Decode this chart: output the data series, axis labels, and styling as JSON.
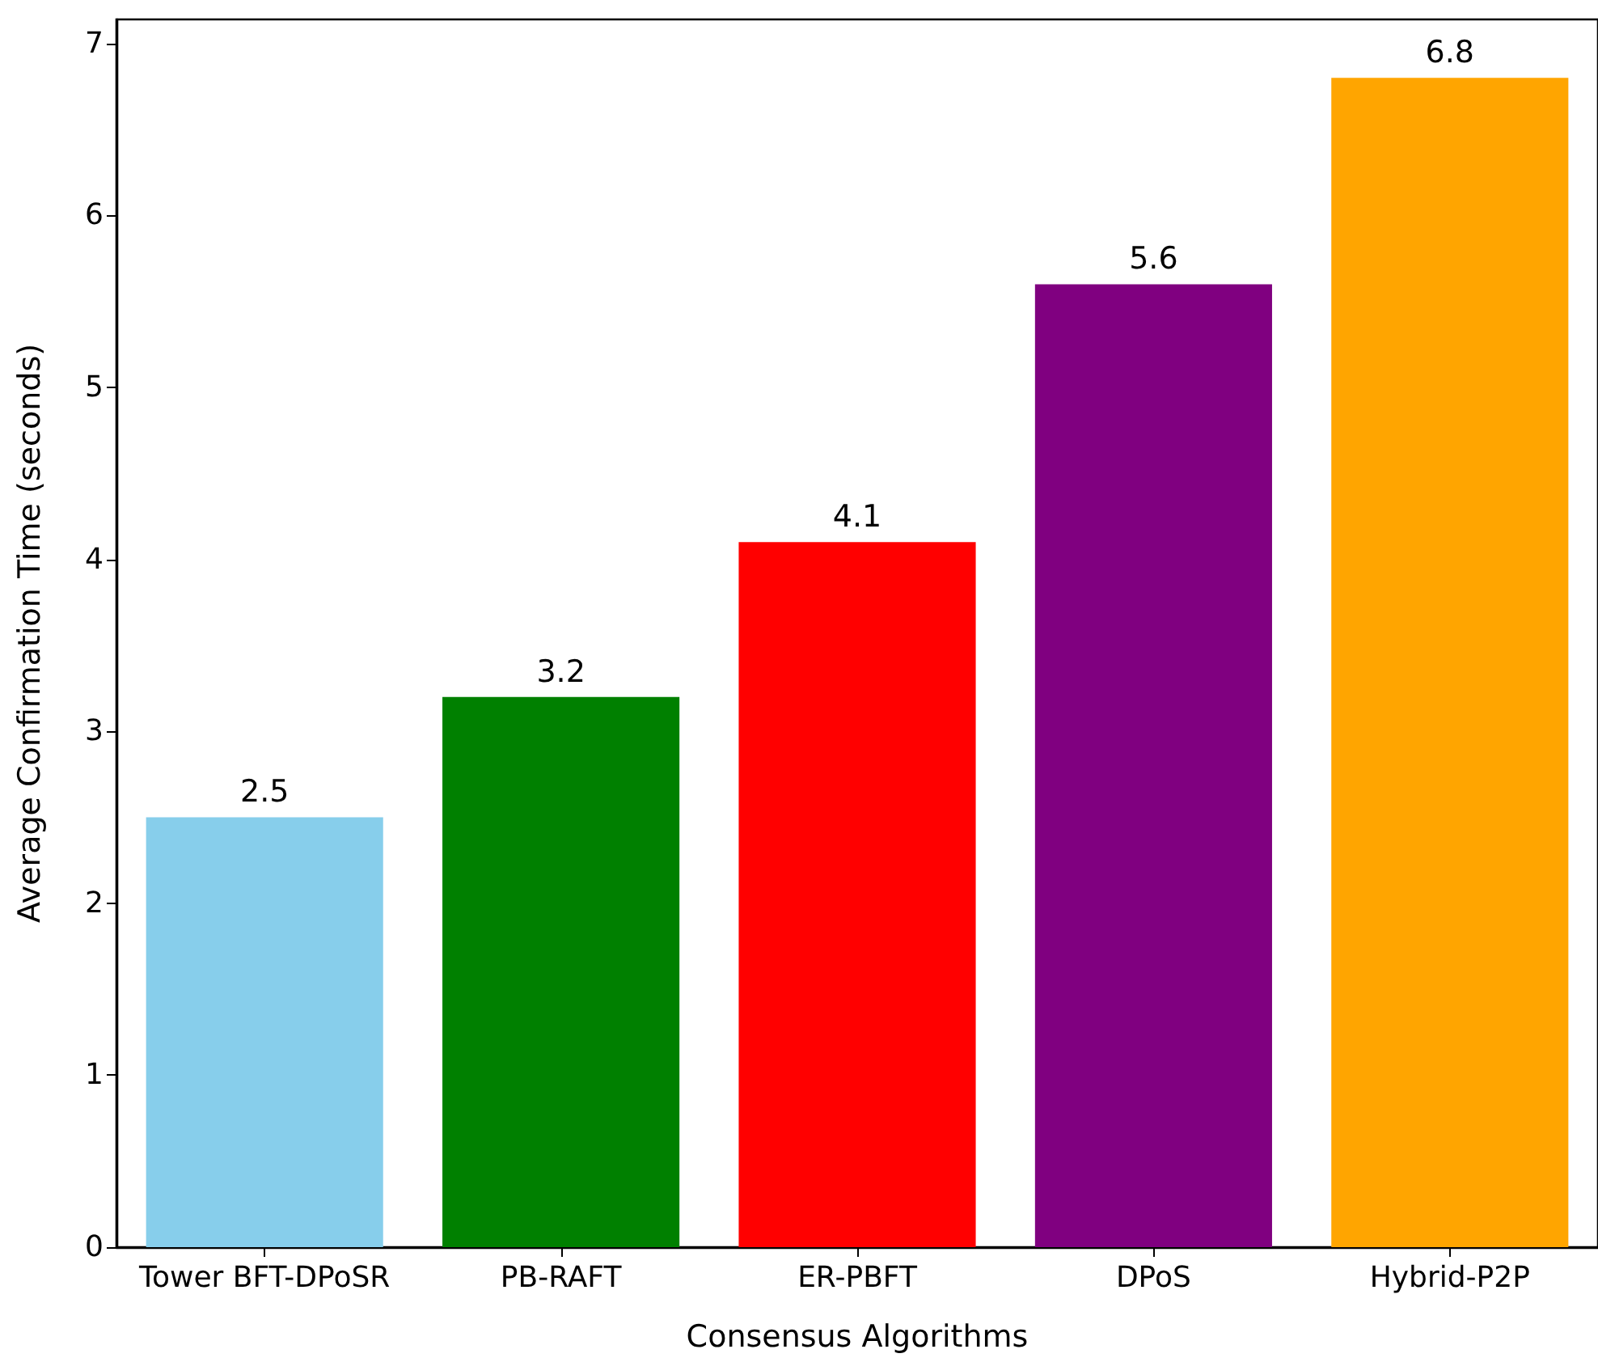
{
  "chart_data": {
    "type": "bar",
    "xlabel": "Consensus Algorithms",
    "ylabel": "Average Confirmation Time (seconds)",
    "categories": [
      "Tower BFT-DPoSR",
      "PB-RAFT",
      "ER-PBFT",
      "DPoS",
      "Hybrid-P2P"
    ],
    "values": [
      2.5,
      3.2,
      4.1,
      5.6,
      6.8
    ],
    "colors": [
      "#87ceeb",
      "#008000",
      "#ff0000",
      "#800080",
      "#ffa500"
    ],
    "ylim": [
      0,
      7.14
    ],
    "yticks": [
      0,
      1,
      2,
      3,
      4,
      5,
      6,
      7
    ],
    "data_labels": true,
    "grid": false
  }
}
